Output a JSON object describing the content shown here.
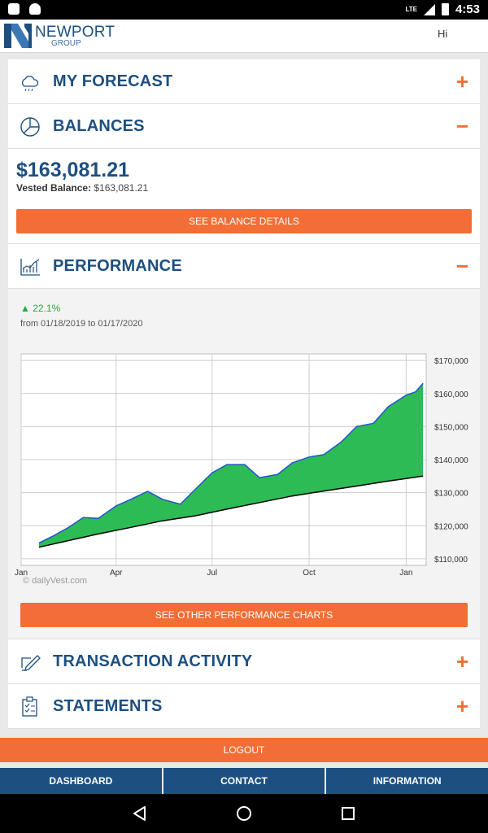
{
  "status_bar": {
    "time": "4:53",
    "network": "LTE"
  },
  "header": {
    "logo_line1": "NEWPORT",
    "logo_line2": "GROUP",
    "greeting": "Hi"
  },
  "sections": {
    "forecast": {
      "title": "MY FORECAST",
      "toggle": "+",
      "icon": "cloud-icon"
    },
    "balances": {
      "title": "BALANCES",
      "toggle": "−",
      "icon": "pie-chart-icon"
    },
    "performance": {
      "title": "PERFORMANCE",
      "toggle": "−",
      "icon": "line-chart-icon"
    },
    "transactions": {
      "title": "TRANSACTION ACTIVITY",
      "toggle": "+",
      "icon": "pen-edit-icon"
    },
    "statements": {
      "title": "STATEMENTS",
      "toggle": "+",
      "icon": "clipboard-icon"
    }
  },
  "balance": {
    "amount": "$163,081.21",
    "vested_label": "Vested Balance:",
    "vested_value": "$163,081.21",
    "details_button": "SEE BALANCE DETAILS"
  },
  "performance": {
    "change": "22.1%",
    "range": "from 01/18/2019 to 01/17/2020",
    "copyright": "dailyVest.com",
    "other_charts_button": "SEE OTHER PERFORMANCE CHARTS"
  },
  "chart_data": {
    "type": "area",
    "ylim": [
      108000,
      172000
    ],
    "y_ticks": [
      "$170,000",
      "$160,000",
      "$150,000",
      "$140,000",
      "$130,000",
      "$120,000",
      "$110,000"
    ],
    "y_tick_values": [
      170000,
      160000,
      150000,
      140000,
      130000,
      120000,
      110000
    ],
    "x_ticks": [
      "Jan\n19",
      "Apr",
      "Jul",
      "Oct",
      "Jan\n20"
    ],
    "x_tick_dates": [
      "2019-01-01",
      "2019-04-01",
      "2019-07-01",
      "2019-10-01",
      "2020-01-01"
    ],
    "x_range": [
      "2019-01-01",
      "2020-01-20"
    ],
    "grid": true,
    "series": [
      {
        "role": "balance",
        "color": "#2255cc",
        "points": [
          [
            "2019-01-18",
            114800
          ],
          [
            "2019-02-01",
            117000
          ],
          [
            "2019-02-15",
            119500
          ],
          [
            "2019-03-01",
            122500
          ],
          [
            "2019-03-15",
            122200
          ],
          [
            "2019-04-01",
            126000
          ],
          [
            "2019-04-15",
            128000
          ],
          [
            "2019-05-01",
            130400
          ],
          [
            "2019-05-15",
            128000
          ],
          [
            "2019-06-01",
            126500
          ],
          [
            "2019-06-15",
            131000
          ],
          [
            "2019-07-01",
            136000
          ],
          [
            "2019-07-15",
            138500
          ],
          [
            "2019-08-01",
            138500
          ],
          [
            "2019-08-15",
            134500
          ],
          [
            "2019-09-01",
            135500
          ],
          [
            "2019-09-15",
            139000
          ],
          [
            "2019-10-01",
            140800
          ],
          [
            "2019-10-15",
            141500
          ],
          [
            "2019-11-01",
            145500
          ],
          [
            "2019-11-15",
            150000
          ],
          [
            "2019-12-01",
            151000
          ],
          [
            "2019-12-15",
            156000
          ],
          [
            "2020-01-01",
            159500
          ],
          [
            "2020-01-10",
            160500
          ],
          [
            "2020-01-17",
            163081
          ]
        ]
      },
      {
        "role": "contributions",
        "color": "#000000",
        "points": [
          [
            "2019-01-18",
            113500
          ],
          [
            "2019-02-15",
            115500
          ],
          [
            "2019-03-15",
            117500
          ],
          [
            "2019-04-15",
            119500
          ],
          [
            "2019-05-15",
            121500
          ],
          [
            "2019-06-15",
            123000
          ],
          [
            "2019-07-15",
            125000
          ],
          [
            "2019-08-15",
            127000
          ],
          [
            "2019-09-15",
            129000
          ],
          [
            "2019-10-15",
            130500
          ],
          [
            "2019-11-15",
            132000
          ],
          [
            "2019-12-15",
            133500
          ],
          [
            "2020-01-17",
            135000
          ]
        ]
      }
    ],
    "fill_color": "#2dbb55"
  },
  "footer": {
    "logout": "LOGOUT",
    "tabs": [
      "DASHBOARD",
      "CONTACT",
      "INFORMATION"
    ]
  }
}
